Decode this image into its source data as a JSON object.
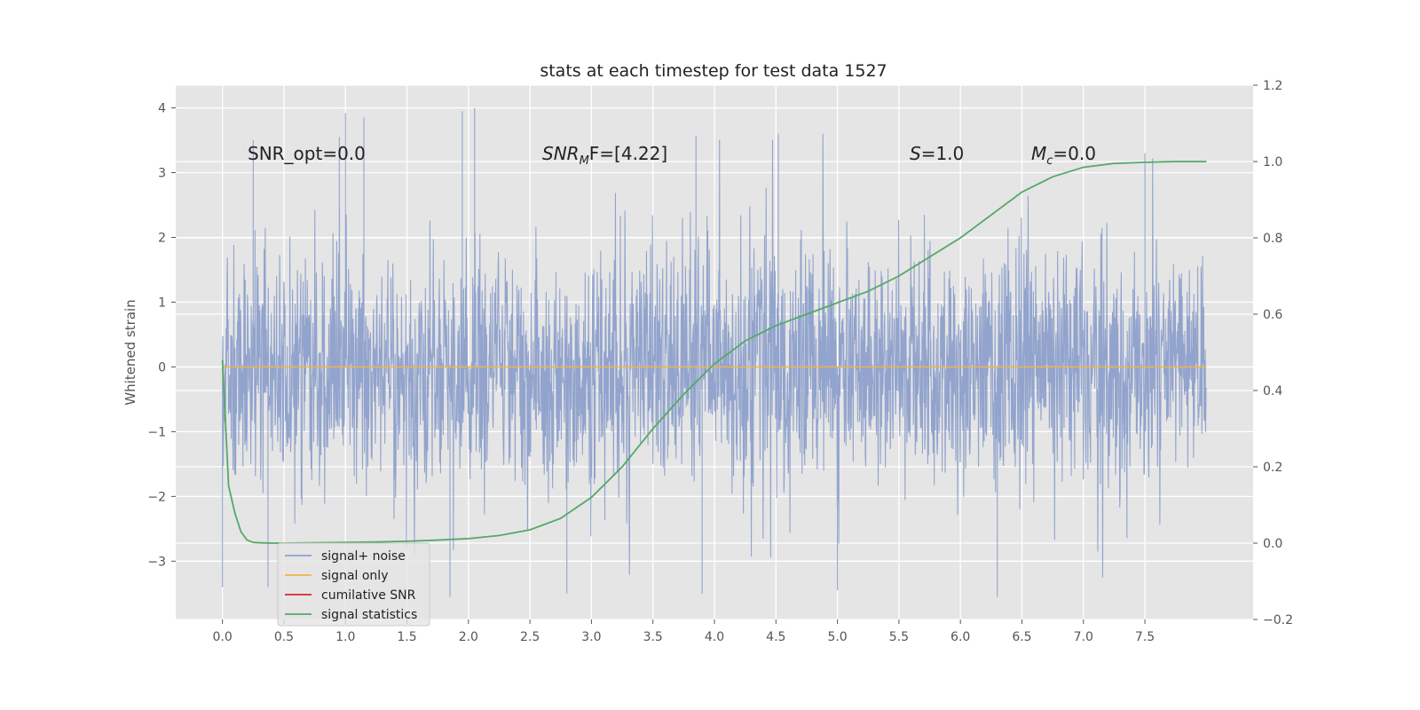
{
  "chart_data": {
    "type": "line",
    "title": "stats at each timestep for test data 1527",
    "ylabel": "Whitened strain",
    "xlim": [
      -0.38,
      8.38
    ],
    "ylim_left": [
      -3.9,
      4.35
    ],
    "ylim_right": [
      -0.2,
      1.2
    ],
    "x_ticks": [
      0.0,
      0.5,
      1.0,
      1.5,
      2.0,
      2.5,
      3.0,
      3.5,
      4.0,
      4.5,
      5.0,
      5.5,
      6.0,
      6.5,
      7.0,
      7.5
    ],
    "x_tick_labels": [
      "0.0",
      "0.5",
      "1.0",
      "1.5",
      "2.0",
      "2.5",
      "3.0",
      "3.5",
      "4.0",
      "4.5",
      "5.0",
      "5.5",
      "6.0",
      "6.5",
      "7.0",
      "7.5"
    ],
    "y_left_ticks": [
      -3,
      -2,
      -1,
      0,
      1,
      2,
      3,
      4
    ],
    "y_left_tick_labels": [
      "−3",
      "−2",
      "−1",
      "0",
      "1",
      "2",
      "3",
      "4"
    ],
    "y_right_ticks": [
      -0.2,
      0.0,
      0.2,
      0.4,
      0.6,
      0.8,
      1.0,
      1.2
    ],
    "y_right_tick_labels": [
      "−0.2",
      "0.0",
      "0.2",
      "0.4",
      "0.6",
      "0.8",
      "1.0",
      "1.2"
    ],
    "grid": true,
    "legend_position": "lower-left",
    "annotations": {
      "snr_opt": "SNR_opt=0.0",
      "snr_mf_main": "SNR",
      "snr_mf_sub": "M",
      "snr_mf_tail": "F=[4.22]",
      "s_italic": "S",
      "s_value": "=1.0",
      "mc_main": "M",
      "mc_sub": "c",
      "mc_value": "=0.0"
    },
    "series": [
      {
        "name": "signal+ noise",
        "axis": "left",
        "color": "#8da0cb",
        "kind": "noise",
        "x_range": [
          0.0,
          8.0
        ],
        "y_range": [
          -3.5,
          4.0
        ],
        "notable_peaks": [
          [
            0.25,
            3.5
          ],
          [
            0.95,
            3.55
          ],
          [
            1.0,
            3.92
          ],
          [
            1.15,
            3.85
          ],
          [
            1.95,
            3.95
          ],
          [
            2.05,
            4.0
          ],
          [
            3.85,
            3.57
          ],
          [
            4.52,
            3.6
          ],
          [
            7.5,
            3.3
          ]
        ],
        "notable_troughs": [
          [
            0.0,
            -3.4
          ],
          [
            0.37,
            -3.4
          ],
          [
            1.85,
            -3.55
          ],
          [
            2.8,
            -3.5
          ],
          [
            3.9,
            -3.5
          ],
          [
            5.0,
            -3.45
          ],
          [
            6.3,
            -3.55
          ]
        ]
      },
      {
        "name": "signal only",
        "axis": "left",
        "color": "#f0b252",
        "x": [
          0.0,
          8.0
        ],
        "y": [
          0.0,
          0.0
        ]
      },
      {
        "name": "cumilative SNR",
        "axis": "right",
        "color": "#d62728",
        "x": [],
        "y": []
      },
      {
        "name": "signal statistics",
        "axis": "right",
        "color": "#55a868",
        "x": [
          0.0,
          0.05,
          0.1,
          0.15,
          0.2,
          0.25,
          0.3,
          0.4,
          0.5,
          0.75,
          1.0,
          1.25,
          1.5,
          1.75,
          2.0,
          2.25,
          2.5,
          2.75,
          3.0,
          3.25,
          3.5,
          3.75,
          4.0,
          4.25,
          4.5,
          4.75,
          5.0,
          5.25,
          5.5,
          5.75,
          6.0,
          6.25,
          6.5,
          6.75,
          7.0,
          7.25,
          7.5,
          7.75,
          8.0
        ],
        "y": [
          0.48,
          0.15,
          0.08,
          0.03,
          0.008,
          0.002,
          0.001,
          0.0,
          0.0,
          0.001,
          0.002,
          0.003,
          0.005,
          0.008,
          0.012,
          0.02,
          0.035,
          0.065,
          0.12,
          0.2,
          0.3,
          0.39,
          0.47,
          0.53,
          0.57,
          0.6,
          0.63,
          0.66,
          0.7,
          0.75,
          0.8,
          0.86,
          0.92,
          0.96,
          0.985,
          0.995,
          0.998,
          1.0,
          1.0
        ]
      }
    ]
  }
}
